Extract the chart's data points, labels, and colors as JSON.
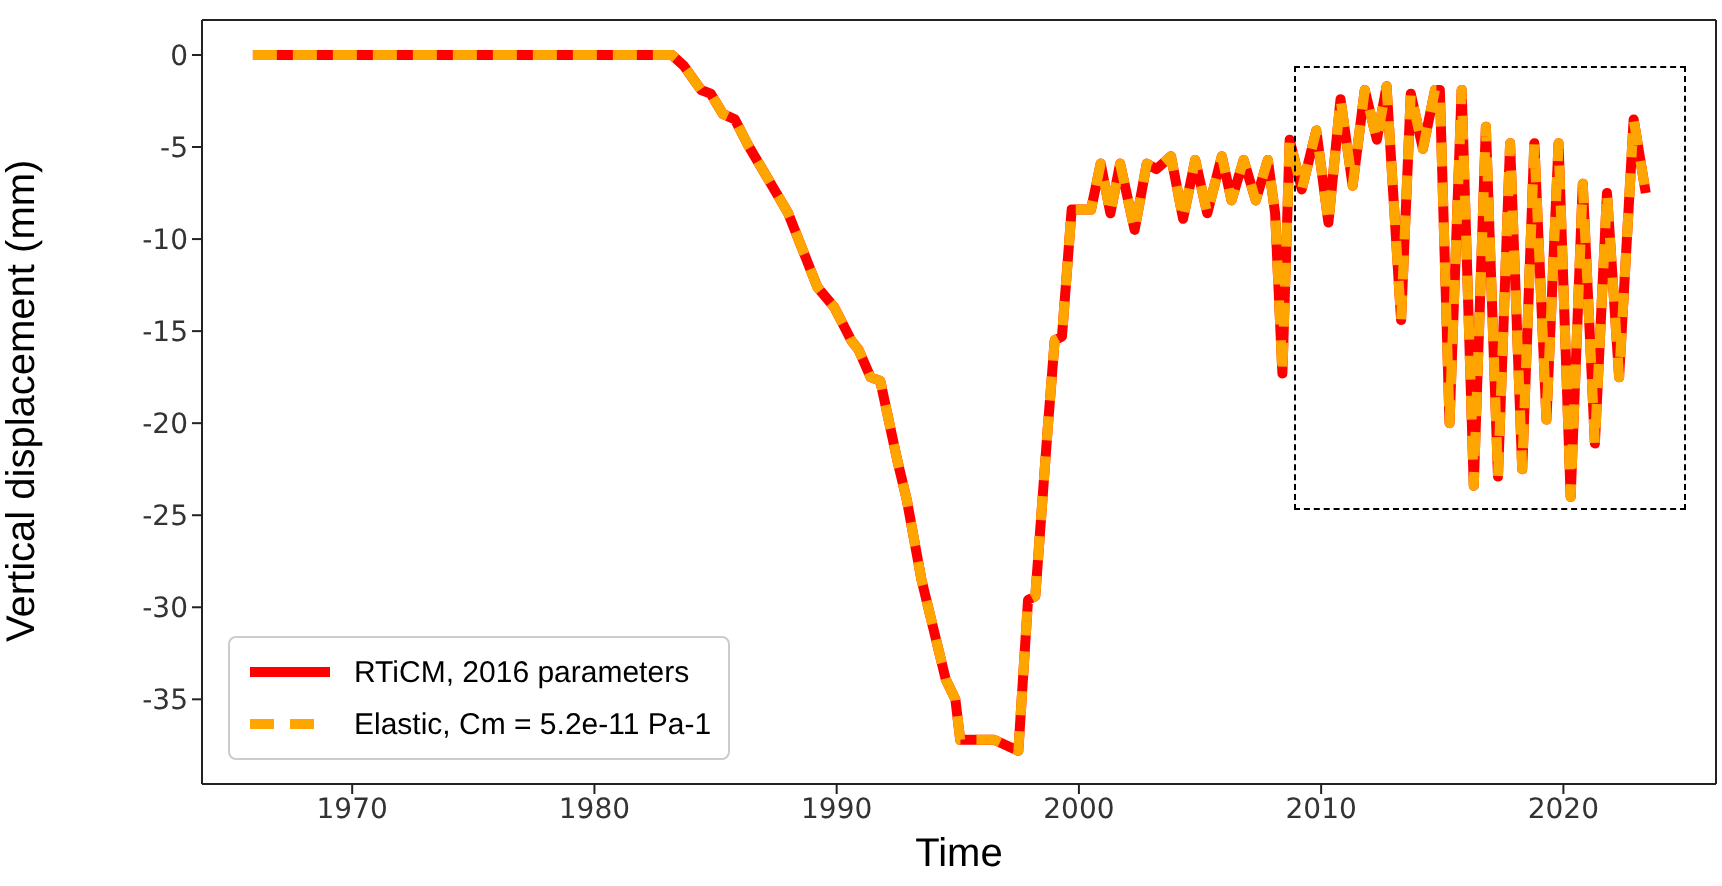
{
  "chart_data": {
    "type": "line",
    "xlabel": "Time",
    "ylabel": "Vertical displacement (mm)",
    "x": [
      1965.9,
      1983.2,
      1983.7,
      1984.4,
      1984.8,
      1985.3,
      1985.8,
      1986.3,
      1987.6,
      1988.0,
      1989.2,
      1989.9,
      1990.6,
      1990.9,
      1991.4,
      1991.8,
      1992.5,
      1992.9,
      1993.5,
      1994.5,
      1994.9,
      1995.1,
      1996.5,
      1997.5,
      1997.9,
      1998.2,
      1998.7,
      1999.0,
      1999.3,
      1999.7,
      2000.5,
      2000.9,
      2001.3,
      2001.7,
      2002.3,
      2002.8,
      2003.2,
      2003.8,
      2004.3,
      2004.8,
      2005.3,
      2005.9,
      2006.3,
      2006.8,
      2007.3,
      2007.8,
      2008.1,
      2008.4,
      2008.7,
      2009.2,
      2009.8,
      2010.3,
      2010.8,
      2011.3,
      2011.8,
      2012.3,
      2012.7,
      2013.3,
      2013.7,
      2014.2,
      2014.7,
      2014.9,
      2015.3,
      2015.8,
      2016.3,
      2016.8,
      2017.3,
      2017.8,
      2018.3,
      2018.8,
      2019.3,
      2019.8,
      2020.3,
      2020.8,
      2021.3,
      2021.8,
      2022.3,
      2022.9,
      2023.4
    ],
    "series": [
      {
        "name": "RTiCM, 2016 parameters",
        "color": "#ff0000",
        "line_style": "solid",
        "values": [
          0,
          0,
          -0.6,
          -1.9,
          -2.1,
          -3.2,
          -3.5,
          -4.8,
          -7.7,
          -8.6,
          -12.6,
          -13.7,
          -15.5,
          -16.0,
          -17.5,
          -17.7,
          -22.0,
          -24.2,
          -28.5,
          -33.9,
          -35.0,
          -37.2,
          -37.2,
          -37.8,
          -29.6,
          -29.4,
          -20.5,
          -15.5,
          -15.3,
          -8.4,
          -8.4,
          -5.9,
          -8.6,
          -5.9,
          -9.5,
          -5.9,
          -6.2,
          -5.5,
          -8.9,
          -5.7,
          -8.6,
          -5.5,
          -7.9,
          -5.7,
          -7.9,
          -5.7,
          -8.6,
          -17.3,
          -4.6,
          -7.3,
          -4.1,
          -9.1,
          -2.4,
          -7.1,
          -1.9,
          -4.6,
          -1.7,
          -14.4,
          -2.1,
          -5.1,
          -1.9,
          -1.9,
          -20.0,
          -1.9,
          -23.4,
          -3.9,
          -22.9,
          -4.8,
          -22.5,
          -4.8,
          -19.8,
          -4.8,
          -24.0,
          -7.0,
          -21.1,
          -7.5,
          -17.5,
          -3.5,
          -7.5
        ]
      },
      {
        "name": "Elastic, Cm = 5.2e-11 Pa-1",
        "color": "#ffa500",
        "line_style": "dashed",
        "values": [
          0,
          0,
          -0.6,
          -1.9,
          -2.1,
          -3.2,
          -3.5,
          -4.8,
          -7.7,
          -8.6,
          -12.6,
          -13.7,
          -15.5,
          -16.0,
          -17.5,
          -17.7,
          -22.0,
          -24.2,
          -28.5,
          -33.9,
          -35.0,
          -37.2,
          -37.2,
          -37.8,
          -29.6,
          -29.4,
          -20.5,
          -15.5,
          -15.3,
          -8.4,
          -8.4,
          -5.9,
          -8.6,
          -5.9,
          -9.5,
          -5.9,
          -6.2,
          -5.5,
          -8.9,
          -5.7,
          -8.6,
          -5.5,
          -7.9,
          -5.7,
          -7.9,
          -5.7,
          -8.6,
          -17.3,
          -4.6,
          -7.3,
          -4.1,
          -9.1,
          -2.4,
          -7.1,
          -1.9,
          -4.6,
          -1.7,
          -14.4,
          -2.1,
          -5.1,
          -1.9,
          -1.9,
          -20.0,
          -1.9,
          -23.4,
          -3.9,
          -22.9,
          -4.8,
          -22.5,
          -4.8,
          -19.8,
          -4.8,
          -24.0,
          -7.0,
          -21.1,
          -7.5,
          -17.5,
          -3.5,
          -7.5
        ]
      }
    ],
    "xlim": [
      1963.8,
      2026.3
    ],
    "xticks": [
      1970,
      1980,
      1990,
      2000,
      2010,
      2020
    ],
    "ylim": [
      -39.6,
      1.9
    ],
    "yticks": [
      -35,
      -30,
      -25,
      -20,
      -15,
      -10,
      -5,
      0
    ],
    "grid": false,
    "legend": "bottom left"
  }
}
